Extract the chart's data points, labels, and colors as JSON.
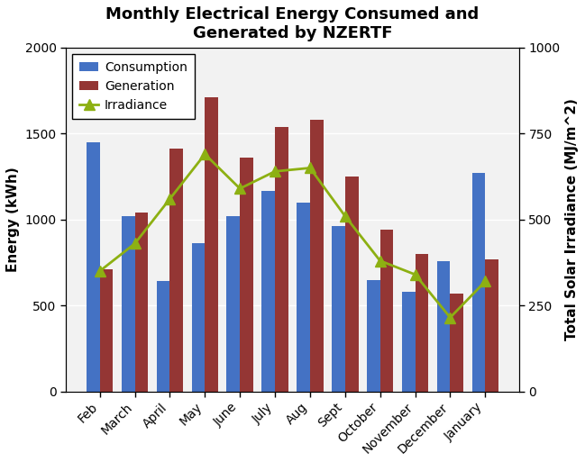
{
  "title": "Monthly Electrical Energy Consumed and\nGenerated by NZERTF",
  "months": [
    "Feb",
    "March",
    "April",
    "May",
    "June",
    "July",
    "Aug",
    "Sept",
    "October",
    "November",
    "December",
    "January"
  ],
  "consumption": [
    1450,
    1020,
    640,
    860,
    1020,
    1165,
    1100,
    960,
    650,
    580,
    760,
    1270
  ],
  "generation": [
    710,
    1040,
    1410,
    1710,
    1360,
    1540,
    1580,
    1250,
    940,
    800,
    570,
    770
  ],
  "irradiance": [
    350,
    430,
    560,
    690,
    590,
    640,
    650,
    510,
    380,
    340,
    215,
    320
  ],
  "bar_color_consumption": "#4472C4",
  "bar_color_generation": "#943634",
  "line_color_irradiance": "#8DB012",
  "marker_color_irradiance": "#8DB012",
  "ylabel_left": "Energy (kWh)",
  "ylabel_right": "Total Solar Irradiance (MJ/m^2)",
  "ylim_left": [
    0,
    2000
  ],
  "ylim_right": [
    0,
    1000
  ],
  "yticks_left": [
    0,
    500,
    1000,
    1500,
    2000
  ],
  "yticks_right": [
    0,
    250,
    500,
    750,
    1000
  ],
  "legend_labels": [
    "Consumption",
    "Generation",
    "Irradiance"
  ],
  "plot_bg_color": "#F2F2F2",
  "figure_bg_color": "#FFFFFF",
  "grid_color": "#FFFFFF",
  "title_fontsize": 13,
  "label_fontsize": 11,
  "tick_fontsize": 10,
  "legend_fontsize": 10,
  "bar_width": 0.38
}
